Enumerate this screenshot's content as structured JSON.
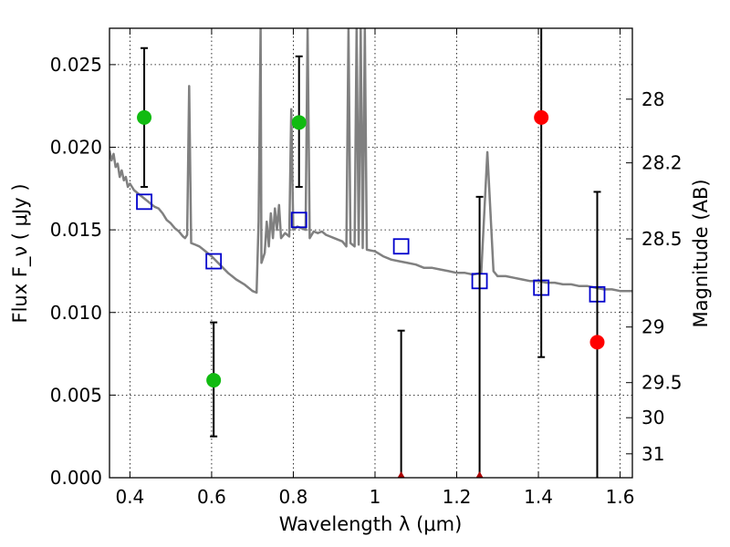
{
  "chart_data": {
    "type": "scatter",
    "title": "",
    "xlabel": "Wavelength  λ (μm)",
    "ylabel": "Flux  F_ν  ( μJy )",
    "ylabel_right": "Magnitude (AB)",
    "xlim": [
      0.35,
      1.63
    ],
    "ylim": [
      0.0,
      0.0272
    ],
    "grid": true,
    "x_ticks": [
      {
        "value": 0.4,
        "label": "0.4"
      },
      {
        "value": 0.6,
        "label": "0.6"
      },
      {
        "value": 0.8,
        "label": "0.8"
      },
      {
        "value": 1.0,
        "label": "1"
      },
      {
        "value": 1.2,
        "label": "1.2"
      },
      {
        "value": 1.4,
        "label": "1.4"
      },
      {
        "value": 1.6,
        "label": "1.6"
      }
    ],
    "y_ticks": [
      {
        "value": 0.0,
        "label": "0.000"
      },
      {
        "value": 0.005,
        "label": "0.005"
      },
      {
        "value": 0.01,
        "label": "0.010"
      },
      {
        "value": 0.015,
        "label": "0.015"
      },
      {
        "value": 0.02,
        "label": "0.020"
      },
      {
        "value": 0.025,
        "label": "0.025"
      }
    ],
    "right_ticks": [
      {
        "mag": 28,
        "label": "28"
      },
      {
        "mag": 28.2,
        "label": "28.2"
      },
      {
        "mag": 28.5,
        "label": "28.5"
      },
      {
        "mag": 29,
        "label": "29"
      },
      {
        "mag": 29.5,
        "label": "29.5"
      },
      {
        "mag": 30,
        "label": "30"
      },
      {
        "mag": 31,
        "label": "31"
      }
    ],
    "series": [
      {
        "kind": "line",
        "color": "#808080",
        "points": [
          [
            0.35,
            0.0198
          ],
          [
            0.355,
            0.0192
          ],
          [
            0.36,
            0.0196
          ],
          [
            0.365,
            0.0188
          ],
          [
            0.37,
            0.019
          ],
          [
            0.375,
            0.0182
          ],
          [
            0.38,
            0.0186
          ],
          [
            0.385,
            0.018
          ],
          [
            0.39,
            0.0182
          ],
          [
            0.395,
            0.0176
          ],
          [
            0.4,
            0.0178
          ],
          [
            0.41,
            0.0174
          ],
          [
            0.42,
            0.0172
          ],
          [
            0.43,
            0.017
          ],
          [
            0.44,
            0.0168
          ],
          [
            0.45,
            0.0166
          ],
          [
            0.46,
            0.0164
          ],
          [
            0.47,
            0.0163
          ],
          [
            0.48,
            0.016
          ],
          [
            0.49,
            0.0156
          ],
          [
            0.5,
            0.0154
          ],
          [
            0.51,
            0.0151
          ],
          [
            0.52,
            0.0149
          ],
          [
            0.53,
            0.0146
          ],
          [
            0.535,
            0.0145
          ],
          [
            0.54,
            0.0147
          ],
          [
            0.545,
            0.0237
          ],
          [
            0.55,
            0.0142
          ],
          [
            0.56,
            0.0141
          ],
          [
            0.57,
            0.014
          ],
          [
            0.58,
            0.0138
          ],
          [
            0.6,
            0.0134
          ],
          [
            0.62,
            0.0129
          ],
          [
            0.64,
            0.0124
          ],
          [
            0.66,
            0.012
          ],
          [
            0.68,
            0.0117
          ],
          [
            0.7,
            0.0113
          ],
          [
            0.71,
            0.0112
          ],
          [
            0.715,
            0.0155
          ],
          [
            0.72,
            0.0272
          ],
          [
            0.722,
            0.013
          ],
          [
            0.73,
            0.0136
          ],
          [
            0.735,
            0.0155
          ],
          [
            0.74,
            0.014
          ],
          [
            0.745,
            0.016
          ],
          [
            0.75,
            0.0145
          ],
          [
            0.755,
            0.0163
          ],
          [
            0.76,
            0.015
          ],
          [
            0.765,
            0.0165
          ],
          [
            0.77,
            0.0145
          ],
          [
            0.78,
            0.0148
          ],
          [
            0.79,
            0.0146
          ],
          [
            0.795,
            0.0223
          ],
          [
            0.8,
            0.015
          ],
          [
            0.81,
            0.0152
          ],
          [
            0.82,
            0.0151
          ],
          [
            0.83,
            0.015
          ],
          [
            0.835,
            0.0272
          ],
          [
            0.84,
            0.0145
          ],
          [
            0.85,
            0.0149
          ],
          [
            0.86,
            0.0148
          ],
          [
            0.87,
            0.0149
          ],
          [
            0.88,
            0.0147
          ],
          [
            0.89,
            0.0146
          ],
          [
            0.9,
            0.0145
          ],
          [
            0.92,
            0.0143
          ],
          [
            0.93,
            0.014
          ],
          [
            0.935,
            0.0272
          ],
          [
            0.94,
            0.0142
          ],
          [
            0.95,
            0.014
          ],
          [
            0.955,
            0.0272
          ],
          [
            0.96,
            0.0141
          ],
          [
            0.965,
            0.0272
          ],
          [
            0.97,
            0.0139
          ],
          [
            0.975,
            0.0272
          ],
          [
            0.98,
            0.0138
          ],
          [
            1.0,
            0.0137
          ],
          [
            1.02,
            0.0134
          ],
          [
            1.04,
            0.0132
          ],
          [
            1.06,
            0.0131
          ],
          [
            1.08,
            0.013
          ],
          [
            1.1,
            0.0129
          ],
          [
            1.12,
            0.0127
          ],
          [
            1.14,
            0.0127
          ],
          [
            1.16,
            0.0126
          ],
          [
            1.18,
            0.0125
          ],
          [
            1.2,
            0.0124
          ],
          [
            1.22,
            0.0124
          ],
          [
            1.24,
            0.0123
          ],
          [
            1.26,
            0.0124
          ],
          [
            1.275,
            0.0197
          ],
          [
            1.29,
            0.0125
          ],
          [
            1.3,
            0.0122
          ],
          [
            1.32,
            0.0122
          ],
          [
            1.34,
            0.0121
          ],
          [
            1.36,
            0.012
          ],
          [
            1.38,
            0.0119
          ],
          [
            1.4,
            0.0119
          ],
          [
            1.42,
            0.0118
          ],
          [
            1.44,
            0.0118
          ],
          [
            1.46,
            0.0117
          ],
          [
            1.48,
            0.0117
          ],
          [
            1.5,
            0.0116
          ],
          [
            1.52,
            0.0116
          ],
          [
            1.54,
            0.0115
          ],
          [
            1.56,
            0.0114
          ],
          [
            1.58,
            0.0114
          ],
          [
            1.6,
            0.0113
          ],
          [
            1.63,
            0.0113
          ]
        ]
      },
      {
        "kind": "squares",
        "color": "#0000cc",
        "points": [
          [
            0.435,
            0.0167
          ],
          [
            0.605,
            0.0131
          ],
          [
            0.814,
            0.0156
          ],
          [
            1.064,
            0.014
          ],
          [
            1.256,
            0.0119
          ],
          [
            1.407,
            0.0115
          ],
          [
            1.544,
            0.0111
          ]
        ]
      },
      {
        "kind": "errorbar",
        "color": "#000000",
        "points": [
          {
            "x": 0.435,
            "y": 0.0218,
            "lo": 0.0176,
            "hi": 0.026
          },
          {
            "x": 0.605,
            "y": 0.0059,
            "lo": 0.0025,
            "hi": 0.0094
          },
          {
            "x": 0.814,
            "y": 0.0215,
            "lo": 0.0176,
            "hi": 0.0255
          },
          {
            "x": 1.064,
            "y": 0.0,
            "lo": 0.0,
            "hi": 0.0089
          },
          {
            "x": 1.256,
            "y": 0.0,
            "lo": 0.0,
            "hi": 0.017
          },
          {
            "x": 1.407,
            "y": 0.0218,
            "lo": 0.0073,
            "hi": 0.0272
          },
          {
            "x": 1.544,
            "y": 0.0082,
            "lo": 0.0,
            "hi": 0.0173
          }
        ]
      },
      {
        "kind": "circles",
        "color": "#11bb11",
        "points": [
          [
            0.435,
            0.0218
          ],
          [
            0.605,
            0.0059
          ],
          [
            0.814,
            0.0215
          ]
        ]
      },
      {
        "kind": "circles",
        "color": "#ff0000",
        "points": [
          [
            1.407,
            0.0218
          ],
          [
            1.544,
            0.0082
          ]
        ]
      },
      {
        "kind": "triangles",
        "color": "#aa0000",
        "points": [
          [
            1.064,
            0.0
          ],
          [
            1.256,
            0.0
          ]
        ]
      }
    ]
  }
}
